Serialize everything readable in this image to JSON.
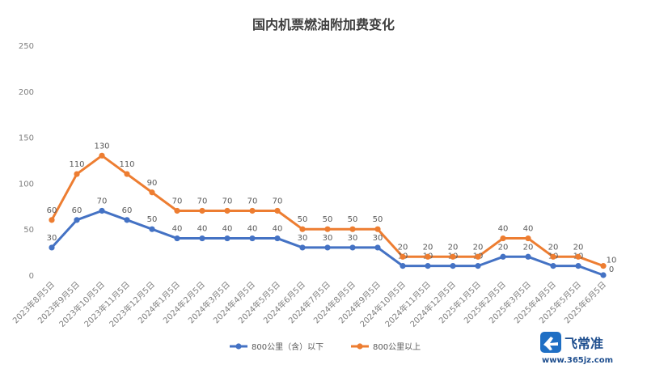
{
  "chart_data": {
    "type": "line",
    "title": "国内机票燃油附加费变化",
    "categories": [
      "2023年8月5日",
      "2023年9月5日",
      "2023年10月5日",
      "2023年11月5日",
      "2023年12月5日",
      "2024年1月5日",
      "2024年2月5日",
      "2024年3月5日",
      "2024年4月5日",
      "2024年5月5日",
      "2024年6月5日",
      "2024年7月5日",
      "2024年8月5日",
      "2024年9月5日",
      "2024年10月5日",
      "2024年11月5日",
      "2024年12月5日",
      "2025年1月5日",
      "2025年2月5日",
      "2025年3月5日",
      "2025年4月5日",
      "2025年5月5日",
      "2025年6月5日"
    ],
    "series": [
      {
        "name": "800公里（含）以下",
        "color": "#4472c4",
        "values": [
          30,
          60,
          70,
          60,
          50,
          40,
          40,
          40,
          40,
          40,
          30,
          30,
          30,
          30,
          10,
          10,
          10,
          10,
          20,
          20,
          10,
          10,
          0
        ]
      },
      {
        "name": "800公里以上",
        "color": "#ed7d31",
        "values": [
          60,
          110,
          130,
          110,
          90,
          70,
          70,
          70,
          70,
          70,
          50,
          50,
          50,
          50,
          20,
          20,
          20,
          20,
          40,
          40,
          20,
          20,
          10
        ]
      }
    ],
    "ylim": [
      0,
      250
    ],
    "yticks": [
      0,
      50,
      100,
      150,
      200,
      250
    ],
    "grid": false,
    "legend_position": "bottom"
  },
  "watermark": {
    "brand": "飞常准",
    "url": "www.365jz.com"
  }
}
